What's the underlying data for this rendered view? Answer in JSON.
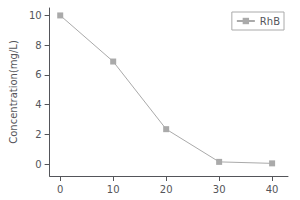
{
  "chart_data": {
    "type": "line",
    "ylabel": "Concentration(mg/L)",
    "x": [
      0,
      10,
      20,
      30,
      40
    ],
    "series": [
      {
        "name": "RhB",
        "color": "#aaaaaa",
        "marker": "square",
        "values": [
          10.0,
          6.9,
          2.35,
          0.15,
          0.05
        ]
      }
    ],
    "xlim": [
      -2,
      43
    ],
    "xticks": [
      0,
      10,
      20,
      30,
      40
    ],
    "ylim": [
      -0.8,
      10.5
    ],
    "yticks": [
      0,
      2,
      4,
      6,
      8,
      10
    ],
    "grid": false,
    "legend": "upper right"
  }
}
